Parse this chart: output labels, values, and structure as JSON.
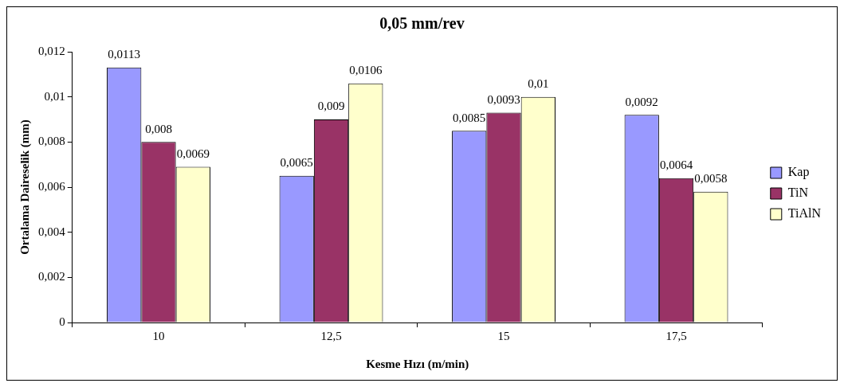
{
  "chart_data": {
    "type": "bar",
    "title": "0,05 mm/rev",
    "xlabel": "Kesme Hızı (m/min)",
    "ylabel": "Ortalama Daireselik (mm)",
    "categories": [
      "10",
      "12,5",
      "15",
      "17,5"
    ],
    "series": [
      {
        "name": "Kap",
        "color": "#9999ff",
        "values": [
          0.0113,
          0.0065,
          0.0085,
          0.0092
        ],
        "value_labels": [
          "0,0113",
          "0,0065",
          "0,0085",
          "0,0092"
        ]
      },
      {
        "name": "TiN",
        "color": "#993366",
        "values": [
          0.008,
          0.009,
          0.0093,
          0.0064
        ],
        "value_labels": [
          "0,008",
          "0,009",
          "0,0093",
          "0,0064"
        ]
      },
      {
        "name": "TiAlN",
        "color": "#ffffcc",
        "values": [
          0.0069,
          0.0106,
          0.01,
          0.0058
        ],
        "value_labels": [
          "0,0069",
          "0,0106",
          "0,01",
          "0,0058"
        ]
      }
    ],
    "ylim": [
      0,
      0.012
    ],
    "yticks": [
      0,
      {
        "value": 0.002,
        "label": "0,002"
      },
      {
        "value": 0.004,
        "label": "0,004"
      },
      {
        "value": 0.006,
        "label": "0,006"
      },
      {
        "value": 0.008,
        "label": "0,008"
      },
      {
        "value": 0.01,
        "label": "0,01"
      },
      {
        "value": 0.012,
        "label": "0,012"
      }
    ],
    "grid": false,
    "legend": "right"
  }
}
